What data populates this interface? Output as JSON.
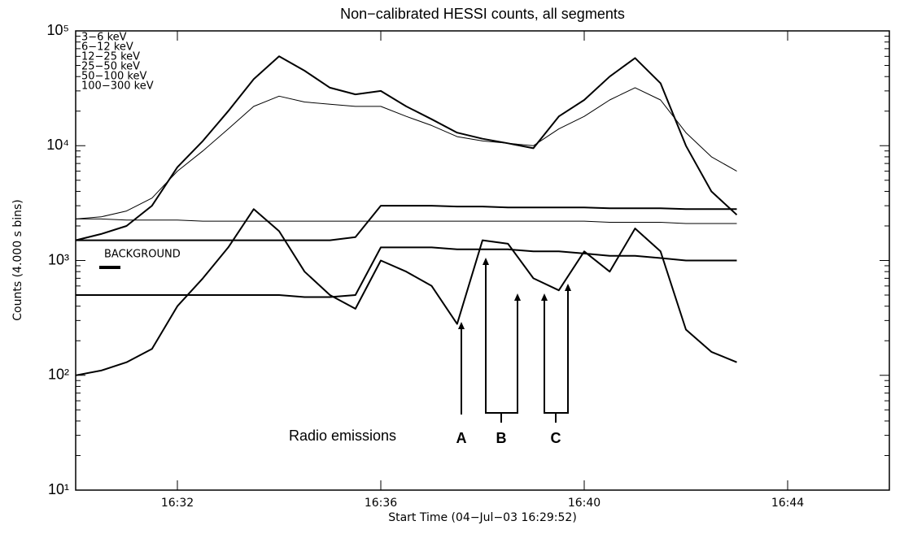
{
  "chart_data": {
    "type": "line",
    "title": "Non−calibrated HESSI counts, all segments",
    "x_label": "Start Time (04−Jul−03 16:29:52)",
    "y_label": "Counts  (4.000 s bins)",
    "log_y": true,
    "xlim": [
      "16:30",
      "16:46"
    ],
    "xticks": [
      "16:32",
      "16:36",
      "16:40",
      "16:44"
    ],
    "ylim": [
      10,
      100000
    ],
    "yticks": [
      {
        "value": 10,
        "label": "10¹"
      },
      {
        "value": 100,
        "label": "10²"
      },
      {
        "value": 1000,
        "label": "10³"
      },
      {
        "value": 10000,
        "label": "10⁴"
      },
      {
        "value": 100000,
        "label": "10⁵"
      }
    ],
    "x": [
      "16:30:00",
      "16:30:30",
      "16:31:00",
      "16:31:30",
      "16:32:00",
      "16:32:30",
      "16:33:00",
      "16:33:30",
      "16:34:00",
      "16:34:30",
      "16:35:00",
      "16:35:30",
      "16:36:00",
      "16:36:30",
      "16:37:00",
      "16:37:30",
      "16:38:00",
      "16:38:30",
      "16:39:00",
      "16:39:30",
      "16:40:00",
      "16:40:30",
      "16:41:00",
      "16:41:30",
      "16:42:00",
      "16:42:30",
      "16:43:00"
    ],
    "series": [
      {
        "name": "3−6 keV",
        "color": "#000000",
        "width": 1,
        "values": [
          2300,
          2400,
          2700,
          3500,
          6000,
          9000,
          14000,
          22000,
          27000,
          24000,
          23000,
          22000,
          22000,
          18000,
          15000,
          12000,
          11000,
          10500,
          10000,
          14000,
          18000,
          25000,
          32000,
          25000,
          13000,
          8000,
          6000
        ]
      },
      {
        "name": "6−12 keV",
        "color": "#000000",
        "width": 2,
        "values": [
          1500,
          1700,
          2000,
          3000,
          6500,
          11000,
          20000,
          38000,
          60000,
          45000,
          32000,
          28000,
          30000,
          22000,
          17000,
          13000,
          11500,
          10500,
          9500,
          18000,
          25000,
          40000,
          58000,
          35000,
          10000,
          4000,
          2500
        ]
      },
      {
        "name": "12−25 keV",
        "color": "#000000",
        "width": 2,
        "values": [
          100,
          110,
          130,
          170,
          400,
          700,
          1300,
          2800,
          1800,
          800,
          500,
          380,
          1000,
          800,
          600,
          280,
          1500,
          1400,
          700,
          550,
          1200,
          800,
          1900,
          1200,
          250,
          160,
          130
        ]
      },
      {
        "name": "25−50 keV",
        "color": "#000000",
        "width": 2,
        "values": [
          1500,
          1500,
          1500,
          1500,
          1500,
          1500,
          1500,
          1500,
          1500,
          1500,
          1500,
          1600,
          3000,
          3000,
          3000,
          2950,
          2950,
          2900,
          2900,
          2900,
          2900,
          2850,
          2850,
          2850,
          2800,
          2800,
          2800
        ]
      },
      {
        "name": "50−100 keV",
        "color": "#000000",
        "width": 1,
        "values": [
          2300,
          2300,
          2250,
          2250,
          2250,
          2200,
          2200,
          2200,
          2200,
          2200,
          2200,
          2200,
          2200,
          2200,
          2200,
          2200,
          2200,
          2200,
          2200,
          2200,
          2200,
          2150,
          2150,
          2150,
          2100,
          2100,
          2100
        ]
      },
      {
        "name": "100−300 keV",
        "color": "#000000",
        "width": 2,
        "values": [
          500,
          500,
          500,
          500,
          500,
          500,
          500,
          500,
          500,
          480,
          480,
          500,
          1300,
          1300,
          1300,
          1250,
          1250,
          1250,
          1200,
          1200,
          1150,
          1100,
          1100,
          1050,
          1000,
          1000,
          1000
        ]
      }
    ],
    "annotations": {
      "background": "BACKGROUND",
      "radio": "Radio emissions",
      "a": "A",
      "b": "B",
      "c": "C"
    }
  }
}
